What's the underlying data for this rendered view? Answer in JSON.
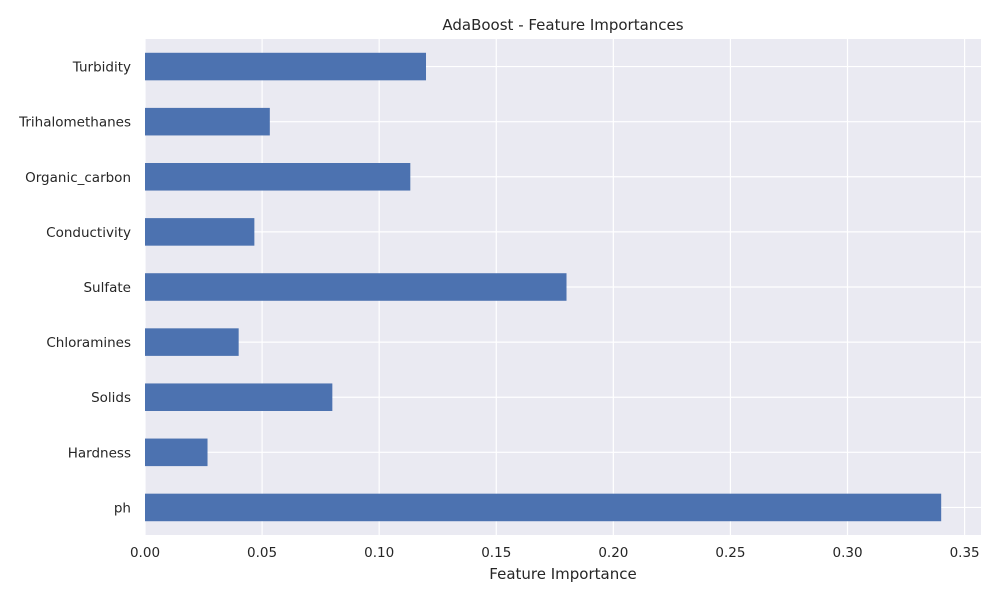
{
  "chart_data": {
    "type": "bar",
    "orientation": "horizontal",
    "title": "AdaBoost - Feature Importances",
    "xlabel": "Feature Importance",
    "ylabel": "",
    "categories": [
      "ph",
      "Hardness",
      "Solids",
      "Chloramines",
      "Sulfate",
      "Conductivity",
      "Organic_carbon",
      "Trihalomethanes",
      "Turbidity"
    ],
    "values": [
      0.34,
      0.0267,
      0.08,
      0.04,
      0.18,
      0.0467,
      0.1133,
      0.0533,
      0.12
    ],
    "xlim": [
      0,
      0.357
    ],
    "xticks": [
      0.0,
      0.05,
      0.1,
      0.15,
      0.2,
      0.25,
      0.3,
      0.35
    ],
    "xtick_labels": [
      "0.00",
      "0.05",
      "0.10",
      "0.15",
      "0.20",
      "0.25",
      "0.30",
      "0.35"
    ],
    "grid": true,
    "colors": {
      "bar": "#4c72b0",
      "background": "#eaeaf2",
      "grid": "#ffffff"
    }
  }
}
